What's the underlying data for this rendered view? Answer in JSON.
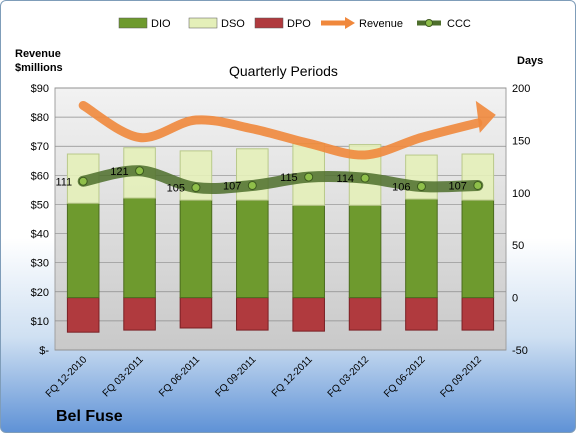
{
  "chart_data": {
    "type": "bar",
    "title": "Quarterly Periods",
    "company": "Bel Fuse",
    "left_axis": {
      "title_line1": "Revenue",
      "title_line2": "$millions",
      "ticks": [
        "$-",
        "$10",
        "$20",
        "$30",
        "$40",
        "$50",
        "$60",
        "$70",
        "$80",
        "$90"
      ],
      "ylim": [
        0,
        90
      ]
    },
    "right_axis": {
      "title": "Days",
      "ticks": [
        "-50",
        "0",
        "50",
        "100",
        "150",
        "200"
      ],
      "ylim": [
        -50,
        200
      ]
    },
    "categories": [
      "FQ 12-2010",
      "FQ 03-2011",
      "FQ 06-2011",
      "FQ 09-2011",
      "FQ 12-2011",
      "FQ 03-2012",
      "FQ 06-2012",
      "FQ 09-2012"
    ],
    "series": [
      {
        "name": "DIO",
        "axis": "days",
        "values": [
          90,
          95,
          93,
          93,
          88,
          88,
          94,
          93
        ],
        "color": "#6e9a2e"
      },
      {
        "name": "DSO",
        "axis": "days",
        "values": [
          47,
          48,
          47,
          49,
          59,
          58,
          42,
          44
        ],
        "color": "#e4efb9"
      },
      {
        "name": "DPO",
        "axis": "days",
        "values": [
          -33,
          -31,
          -29,
          -31,
          -32,
          -31,
          -31,
          -31
        ],
        "color": "#b03a3e"
      },
      {
        "name": "Revenue",
        "axis": "revenue",
        "values": [
          84,
          73,
          79,
          76,
          71,
          67,
          73,
          78
        ],
        "color": "#f0883c"
      },
      {
        "name": "CCC",
        "axis": "days",
        "values": [
          111,
          121,
          105,
          107,
          115,
          114,
          106,
          107
        ],
        "color": "#4e6f2c"
      }
    ],
    "ccc_labels": [
      "111",
      "121",
      "105",
      "107",
      "115",
      "114",
      "106",
      "107"
    ],
    "legend": [
      "DIO",
      "DSO",
      "DPO",
      "Revenue",
      "CCC"
    ],
    "legend_position": "top",
    "grid": true
  }
}
